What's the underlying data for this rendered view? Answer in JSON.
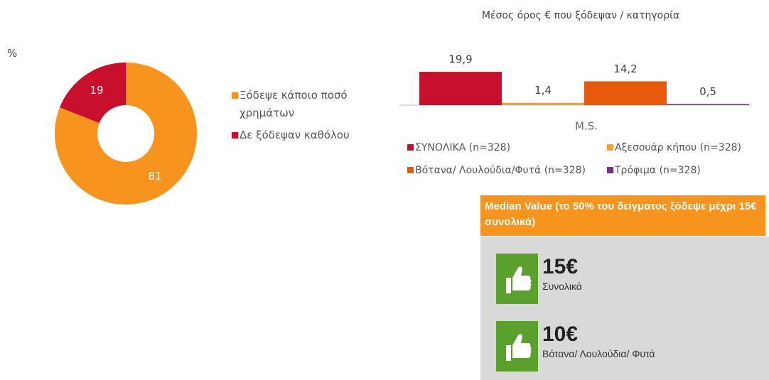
{
  "chart_data": [
    {
      "type": "donut",
      "unit_label": "%",
      "categories": [
        "Ξόδεψε κάποιο ποσό χρημάτων",
        "Δε ξόδεψαν καθόλου"
      ],
      "values": [
        81,
        19
      ],
      "colors": [
        "#f7941d",
        "#c8102e"
      ]
    },
    {
      "type": "bar",
      "title": "Μέσος όρος € που ξόδεψαν / κατηγορία",
      "categories": [
        "M.S."
      ],
      "series": [
        {
          "name": "ΣΥΝΟΛΙΚΑ (n=328)",
          "color": "#c8102e",
          "values": [
            19.9
          ],
          "value_labels": [
            "19,9"
          ]
        },
        {
          "name": "Αξεσουάρ κήπου (n=328)",
          "color": "#f7a030",
          "values": [
            1.4
          ],
          "value_labels": [
            "1,4"
          ]
        },
        {
          "name": "Βότανα/ Λουλούδια/Φυτά (n=328)",
          "color": "#e8590c",
          "values": [
            14.2
          ],
          "value_labels": [
            "14,2"
          ]
        },
        {
          "name": "Τρόφιμα (n=328)",
          "color": "#7b2d8e",
          "values": [
            0.5
          ],
          "value_labels": [
            "0,5"
          ]
        }
      ]
    }
  ],
  "panel": {
    "header": "Median Value (το 50% του δείγματος ξόδεψε μέχρι 15€ συνολικά)",
    "items": [
      {
        "value": "15€",
        "label": "Συνολικά"
      },
      {
        "value": "10€",
        "label": "Βότανα/ Λουλούδια/ Φυτά"
      }
    ]
  }
}
